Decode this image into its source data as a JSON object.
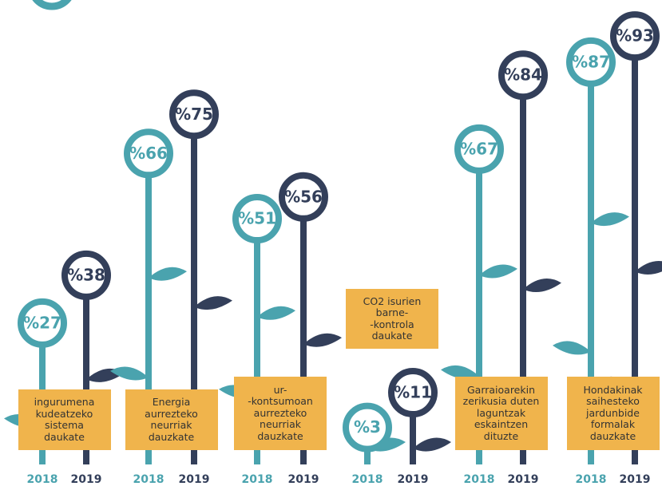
{
  "chart_data": {
    "type": "flower",
    "categories": [
      "ingurumena\nkudeatzeko\nsistema\ndaukate",
      "Energia\naurrezteko\nneurriak\ndauzkate",
      "ur-\n-kontsumoan\naurrezteko\nneurriak\ndauzkate",
      "CO2 isurien\nbarne-\n-kontrola\ndaukate",
      "Garraioarekin\nzerikusia duten\nlaguntzak\neskaintzen\ndituzte",
      "Hondakinak\nsaihesteko\njardunbide\nformalak\ndauzkate"
    ],
    "series": [
      {
        "name": "2018",
        "color": "#4aa3ae",
        "values": [
          27,
          66,
          51,
          3,
          67,
          87
        ],
        "value_labels": [
          "%27",
          "%66",
          "%51",
          "%3",
          "%67",
          "%87"
        ]
      },
      {
        "name": "2019",
        "color": "#333f5a",
        "values": [
          38,
          75,
          56,
          11,
          84,
          93
        ],
        "value_labels": [
          "%38",
          "%75",
          "%56",
          "%11",
          "%84",
          "%93"
        ]
      }
    ]
  }
}
